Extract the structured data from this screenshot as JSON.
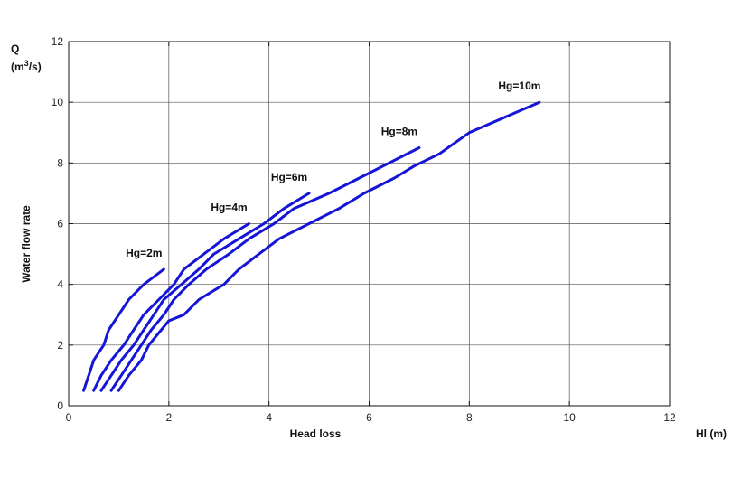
{
  "chart_data": {
    "type": "line",
    "title": "",
    "xlabel": "Head loss",
    "xunit_label": "Hl (m)",
    "ylabel": "Water flow rate",
    "yunit_q": "Q",
    "yunit_base": "(m",
    "yunit_sup": "3",
    "yunit_tail": "/s)",
    "xlim": [
      0,
      12
    ],
    "ylim": [
      0,
      12
    ],
    "xticks": [
      0,
      2,
      4,
      6,
      8,
      10,
      12
    ],
    "yticks": [
      0,
      2,
      4,
      6,
      8,
      10,
      12
    ],
    "grid": true,
    "line_color": "#1515d8",
    "series": [
      {
        "name": "Hg=2m",
        "points": [
          [
            0.3,
            0.5
          ],
          [
            0.4,
            1.0
          ],
          [
            0.5,
            1.5
          ],
          [
            0.7,
            2.0
          ],
          [
            0.8,
            2.5
          ],
          [
            1.0,
            3.0
          ],
          [
            1.2,
            3.5
          ],
          [
            1.5,
            4.0
          ],
          [
            1.9,
            4.5
          ]
        ]
      },
      {
        "name": "Hg=4m",
        "points": [
          [
            0.5,
            0.5
          ],
          [
            0.65,
            1.0
          ],
          [
            0.85,
            1.5
          ],
          [
            1.1,
            2.0
          ],
          [
            1.3,
            2.5
          ],
          [
            1.5,
            3.0
          ],
          [
            1.8,
            3.5
          ],
          [
            2.1,
            4.0
          ],
          [
            2.3,
            4.5
          ],
          [
            2.7,
            5.0
          ],
          [
            3.1,
            5.5
          ],
          [
            3.6,
            6.0
          ]
        ]
      },
      {
        "name": "Hg=6m",
        "points": [
          [
            0.65,
            0.5
          ],
          [
            0.85,
            1.0
          ],
          [
            1.05,
            1.5
          ],
          [
            1.3,
            2.0
          ],
          [
            1.5,
            2.5
          ],
          [
            1.7,
            3.0
          ],
          [
            1.9,
            3.5
          ],
          [
            2.25,
            4.0
          ],
          [
            2.6,
            4.5
          ],
          [
            2.9,
            5.0
          ],
          [
            3.4,
            5.5
          ],
          [
            3.9,
            6.0
          ],
          [
            4.3,
            6.5
          ],
          [
            4.8,
            7.0
          ]
        ]
      },
      {
        "name": "Hg=8m",
        "points": [
          [
            0.85,
            0.5
          ],
          [
            1.05,
            1.0
          ],
          [
            1.25,
            1.5
          ],
          [
            1.45,
            2.0
          ],
          [
            1.65,
            2.5
          ],
          [
            1.9,
            3.0
          ],
          [
            2.1,
            3.5
          ],
          [
            2.4,
            4.0
          ],
          [
            2.75,
            4.5
          ],
          [
            3.2,
            5.0
          ],
          [
            3.6,
            5.5
          ],
          [
            4.1,
            6.0
          ],
          [
            4.5,
            6.5
          ],
          [
            5.2,
            7.0
          ],
          [
            5.8,
            7.5
          ],
          [
            6.4,
            8.0
          ],
          [
            7.0,
            8.5
          ]
        ]
      },
      {
        "name": "Hg=10m",
        "points": [
          [
            1.0,
            0.5
          ],
          [
            1.2,
            1.0
          ],
          [
            1.45,
            1.5
          ],
          [
            1.6,
            2.0
          ],
          [
            1.85,
            2.5
          ],
          [
            2.0,
            2.8
          ],
          [
            2.3,
            3.0
          ],
          [
            2.6,
            3.5
          ],
          [
            3.1,
            4.0
          ],
          [
            3.4,
            4.5
          ],
          [
            3.8,
            5.0
          ],
          [
            4.2,
            5.5
          ],
          [
            4.8,
            6.0
          ],
          [
            5.4,
            6.5
          ],
          [
            5.9,
            7.0
          ],
          [
            6.5,
            7.5
          ],
          [
            6.9,
            7.9
          ],
          [
            7.4,
            8.3
          ],
          [
            8.0,
            9.0
          ],
          [
            8.7,
            9.5
          ],
          [
            9.4,
            10.0
          ]
        ]
      }
    ]
  }
}
